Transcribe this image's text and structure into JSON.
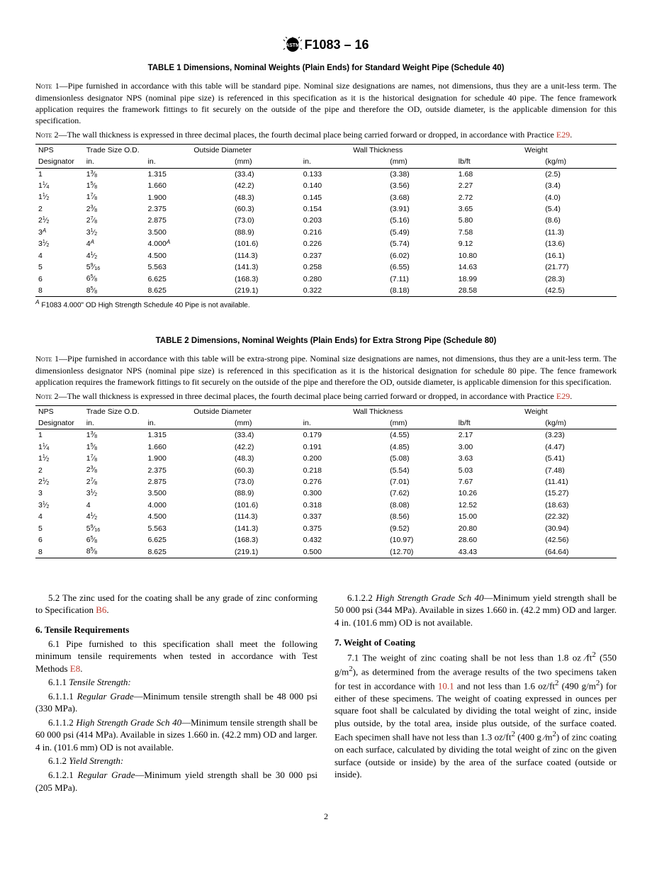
{
  "doc_id": "F1083 – 16",
  "table1": {
    "title": "TABLE 1 Dimensions, Nominal Weights (Plain Ends) for Standard Weight Pipe (Schedule 40)",
    "note1": "Pipe furnished in accordance with this table will be standard pipe. Nominal size designations are names, not dimensions, thus they are a unit-less term. The dimensionless designator NPS (nominal pipe size) is referenced in this specification as it is the historical designation for schedule 40 pipe. The fence framework application requires the framework fittings to fit securely on the outside of the pipe and therefore the OD, outside diameter, is the applicable dimension for this specification.",
    "note2_pre": "The wall thickness is expressed in three decimal places, the fourth decimal place being carried forward or dropped, in accordance with Practice ",
    "note2_ref": "E29",
    "headers": {
      "nps": "NPS",
      "trade": "Trade Size O.D.",
      "od": "Outside Diameter",
      "wt": "Wall Thickness",
      "w": "Weight",
      "desig": "Designator",
      "in": "in.",
      "mm": "(mm)",
      "lbft": "lb/ft",
      "kgm": "(kg/m)"
    },
    "rows": [
      {
        "nps": "1",
        "trade_w": "1",
        "trade_n": "3",
        "trade_d": "8",
        "odi": "1.315",
        "odm": "(33.4)",
        "wti": "0.133",
        "wtm": "(3.38)",
        "wlb": "1.68",
        "wkg": "(2.5)"
      },
      {
        "nps": "1",
        "nps_n": "1",
        "nps_d": "4",
        "trade_w": "1",
        "trade_n": "5",
        "trade_d": "8",
        "odi": "1.660",
        "odm": "(42.2)",
        "wti": "0.140",
        "wtm": "(3.56)",
        "wlb": "2.27",
        "wkg": "(3.4)"
      },
      {
        "nps": "1",
        "nps_n": "1",
        "nps_d": "2",
        "trade_w": "1",
        "trade_n": "7",
        "trade_d": "8",
        "odi": "1.900",
        "odm": "(48.3)",
        "wti": "0.145",
        "wtm": "(3.68)",
        "wlb": "2.72",
        "wkg": "(4.0)"
      },
      {
        "nps": "2",
        "trade_w": "2",
        "trade_n": "3",
        "trade_d": "8",
        "odi": "2.375",
        "odm": "(60.3)",
        "wti": "0.154",
        "wtm": "(3.91)",
        "wlb": "3.65",
        "wkg": "(5.4)"
      },
      {
        "nps": "2",
        "nps_n": "1",
        "nps_d": "2",
        "trade_w": "2",
        "trade_n": "7",
        "trade_d": "8",
        "odi": "2.875",
        "odm": "(73.0)",
        "wti": "0.203",
        "wtm": "(5.16)",
        "wlb": "5.80",
        "wkg": "(8.6)"
      },
      {
        "nps": "3",
        "nps_sup": "A",
        "trade_w": "3",
        "trade_n": "1",
        "trade_d": "2",
        "odi": "3.500",
        "odm": "(88.9)",
        "wti": "0.216",
        "wtm": "(5.49)",
        "wlb": "7.58",
        "wkg": "(11.3)"
      },
      {
        "nps": "3",
        "nps_n": "1",
        "nps_d": "2",
        "trade_w": "4",
        "trade_sup": "A",
        "odi_html": "4.000<span class='supA'>A</span>",
        "odm": "(101.6)",
        "wti": "0.226",
        "wtm": "(5.74)",
        "wlb": "9.12",
        "wkg": "(13.6)"
      },
      {
        "nps": "4",
        "trade_w": "4",
        "trade_n": "1",
        "trade_d": "2",
        "odi": "4.500",
        "odm": "(114.3)",
        "wti": "0.237",
        "wtm": "(6.02)",
        "wlb": "10.80",
        "wkg": "(16.1)"
      },
      {
        "nps": "5",
        "trade_w": "5",
        "trade_n": "9",
        "trade_d": "16",
        "odi": "5.563",
        "odm": "(141.3)",
        "wti": "0.258",
        "wtm": "(6.55)",
        "wlb": "14.63",
        "wkg": "(21.77)"
      },
      {
        "nps": "6",
        "trade_w": "6",
        "trade_n": "5",
        "trade_d": "8",
        "odi": "6.625",
        "odm": "(168.3)",
        "wti": "0.280",
        "wtm": "(7.11)",
        "wlb": "18.99",
        "wkg": "(28.3)"
      },
      {
        "nps": "8",
        "trade_w": "8",
        "trade_n": "5",
        "trade_d": "8",
        "odi": "8.625",
        "odm": "(219.1)",
        "wti": "0.322",
        "wtm": "(8.18)",
        "wlb": "28.58",
        "wkg": "(42.5)"
      }
    ],
    "footnote": "F1083 4.000\" OD High Strength Schedule 40 Pipe is not available."
  },
  "table2": {
    "title": "TABLE 2 Dimensions, Nominal Weights (Plain Ends) for Extra Strong Pipe (Schedule 80)",
    "note1": "Pipe furnished in accordance with this table will be extra-strong pipe. Nominal size designations are names, not dimensions, thus they are a unit-less term. The dimensionless designator NPS (nominal pipe size) is referenced in this specification as it is the historical designation for schedule 80 pipe. The fence framework application requires the framework fittings to fit securely on the outside of the pipe and therefore the OD, outside diameter, is applicable dimension for this specification.",
    "note2_pre": "The wall thickness is expressed in three decimal places, the fourth decimal place being carried forward or dropped, in accordance with Practice ",
    "note2_ref": "E29",
    "rows": [
      {
        "nps": "1",
        "trade_w": "1",
        "trade_n": "3",
        "trade_d": "8",
        "odi": "1.315",
        "odm": "(33.4)",
        "wti": "0.179",
        "wtm": "(4.55)",
        "wlb": "2.17",
        "wkg": "(3.23)"
      },
      {
        "nps": "1",
        "nps_n": "1",
        "nps_d": "4",
        "trade_w": "1",
        "trade_n": "5",
        "trade_d": "8",
        "odi": "1.660",
        "odm": "(42.2)",
        "wti": "0.191",
        "wtm": "(4.85)",
        "wlb": "3.00",
        "wkg": "(4.47)"
      },
      {
        "nps": "1",
        "nps_n": "1",
        "nps_d": "2",
        "trade_w": "1",
        "trade_n": "7",
        "trade_d": "8",
        "odi": "1.900",
        "odm": "(48.3)",
        "wti": "0.200",
        "wtm": "(5.08)",
        "wlb": "3.63",
        "wkg": "(5.41)"
      },
      {
        "nps": "2",
        "trade_w": "2",
        "trade_n": "3",
        "trade_d": "8",
        "odi": "2.375",
        "odm": "(60.3)",
        "wti": "0.218",
        "wtm": "(5.54)",
        "wlb": "5.03",
        "wkg": "(7.48)"
      },
      {
        "nps": "2",
        "nps_n": "1",
        "nps_d": "2",
        "trade_w": "2",
        "trade_n": "7",
        "trade_d": "8",
        "odi": "2.875",
        "odm": "(73.0)",
        "wti": "0.276",
        "wtm": "(7.01)",
        "wlb": "7.67",
        "wkg": "(11.41)"
      },
      {
        "nps": "3",
        "trade_w": "3",
        "trade_n": "1",
        "trade_d": "2",
        "odi": "3.500",
        "odm": "(88.9)",
        "wti": "0.300",
        "wtm": "(7.62)",
        "wlb": "10.26",
        "wkg": "(15.27)"
      },
      {
        "nps": "3",
        "nps_n": "1",
        "nps_d": "2",
        "trade_w": "4",
        "odi": "4.000",
        "odm": "(101.6)",
        "wti": "0.318",
        "wtm": "(8.08)",
        "wlb": "12.52",
        "wkg": "(18.63)"
      },
      {
        "nps": "4",
        "trade_w": "4",
        "trade_n": "1",
        "trade_d": "2",
        "odi": "4.500",
        "odm": "(114.3)",
        "wti": "0.337",
        "wtm": "(8.56)",
        "wlb": "15.00",
        "wkg": "(22.32)"
      },
      {
        "nps": "5",
        "trade_w": "5",
        "trade_n": "9",
        "trade_d": "16",
        "odi": "5.563",
        "odm": "(141.3)",
        "wti": "0.375",
        "wtm": "(9.52)",
        "wlb": "20.80",
        "wkg": "(30.94)"
      },
      {
        "nps": "6",
        "trade_w": "6",
        "trade_n": "5",
        "trade_d": "8",
        "odi": "6.625",
        "odm": "(168.3)",
        "wti": "0.432",
        "wtm": "(10.97)",
        "wlb": "28.60",
        "wkg": "(42.56)"
      },
      {
        "nps": "8",
        "trade_w": "8",
        "trade_n": "5",
        "trade_d": "8",
        "odi": "8.625",
        "odm": "(219.1)",
        "wti": "0.500",
        "wtm": "(12.70)",
        "wlb": "43.43",
        "wkg": "(64.64)"
      }
    ]
  },
  "body": {
    "p52_a": "5.2 The zinc used for the coating shall be any grade of zinc conforming to Specification ",
    "p52_ref": "B6",
    "sec6": "6.  Tensile Requirements",
    "p61_a": "6.1 Pipe furnished to this specification shall meet the following minimum tensile requirements when tested in accordance with Test Methods ",
    "p61_ref": "E8",
    "p611": "6.1.1 ",
    "p611_i": "Tensile Strength:",
    "p6111": "6.1.1.1 ",
    "p6111_i": "Regular Grade",
    "p6111_t": "—Minimum tensile strength shall be 48 000 psi (330 MPa).",
    "p6112": "6.1.1.2 ",
    "p6112_i": "High Strength Grade Sch 40",
    "p6112_t": "—Minimum tensile strength shall be 60 000 psi (414 MPa). Available in sizes 1.660 in. (42.2 mm) OD and larger. 4 in. (101.6 mm) OD is not available.",
    "p612": "6.1.2 ",
    "p612_i": "Yield Strength:",
    "p6121": "6.1.2.1 ",
    "p6121_i": "Regular Grade",
    "p6121_t": "—Minimum yield strength shall be 30 000 psi (205 MPa).",
    "p6122": "6.1.2.2 ",
    "p6122_i": "High Strength Grade Sch 40",
    "p6122_t": "—Minimum yield strength shall be 50 000 psi (344 MPa). Available in sizes 1.660 in. (42.2 mm) OD and larger. 4 in. (101.6 mm) OD is not available.",
    "sec7": "7.  Weight of Coating",
    "p71_a": "7.1 The weight of zinc coating shall be not less than 1.8 oz ⁄ft",
    "p71_b": " (550 g/m",
    "p71_c": "), as determined from the average results of the two specimens taken for test in accordance with ",
    "p71_ref": "10.1",
    "p71_d": " and not less than 1.6 oz/ft",
    "p71_e": " (490 g/m",
    "p71_f": ") for either of these specimens. The weight of coating expressed in ounces per square foot shall be calculated by dividing the total weight of zinc, inside plus outside, by the total area, inside plus outside, of the surface coated. Each specimen shall have not less than 1.3 oz/ft",
    "p71_g": " (400 g ⁄m",
    "p71_h": ") of zinc coating on each surface, calculated by dividing the total weight of zinc on the given surface (outside or inside) by the area of the surface coated (outside or inside)."
  },
  "page": "2"
}
